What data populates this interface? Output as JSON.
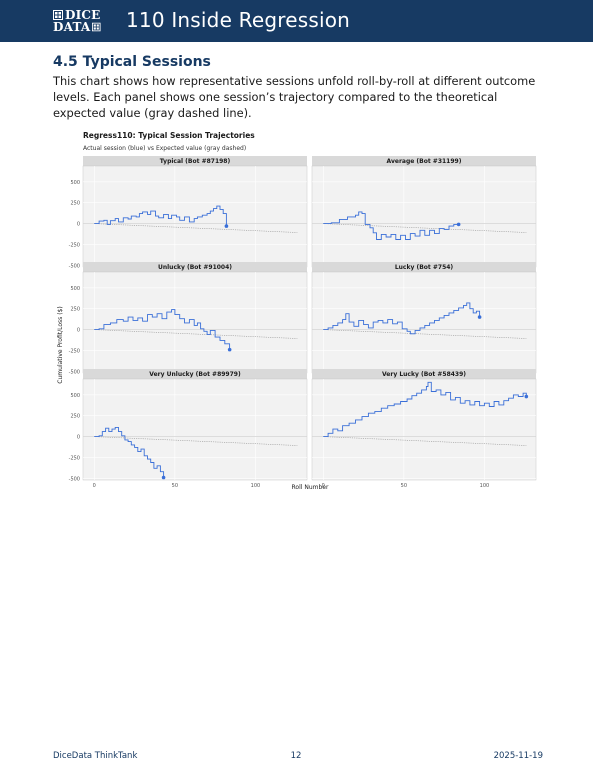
{
  "header": {
    "logo_text": [
      "DICE",
      "DATA"
    ],
    "title": "110 Inside Regression",
    "bg_color": "#173a63"
  },
  "section": {
    "heading": "4.5 Typical Sessions",
    "body": "This chart shows how representative sessions unfold roll-by-roll at different outcome levels. Each panel shows one session’s trajectory compared to the theoretical expected value (gray dashed line)."
  },
  "chart_data": {
    "type": "line",
    "title": "Regress110: Typical Session Trajectories",
    "subtitle": "Actual session (blue) vs Expected value (gray dashed)",
    "xlabel": "Roll Number",
    "ylabel": "Cumulative Profit/Loss ($)",
    "x_ticks": [
      0,
      50,
      100
    ],
    "y_ticks": [
      -500,
      -250,
      0,
      250,
      500
    ],
    "xlim": [
      -7,
      132
    ],
    "ylim": [
      -520,
      690
    ],
    "grid": true,
    "series_color": "#3a6fd8",
    "expected_color": "#9a9a9a",
    "expected_slope": -0.85,
    "panels": [
      {
        "title": "Typical (Bot #87198)",
        "end": [
          82,
          -30
        ],
        "points": [
          [
            0,
            0
          ],
          [
            3,
            30
          ],
          [
            6,
            40
          ],
          [
            8,
            -10
          ],
          [
            10,
            35
          ],
          [
            13,
            60
          ],
          [
            15,
            20
          ],
          [
            18,
            70
          ],
          [
            21,
            55
          ],
          [
            23,
            90
          ],
          [
            26,
            80
          ],
          [
            28,
            120
          ],
          [
            30,
            140
          ],
          [
            33,
            110
          ],
          [
            35,
            150
          ],
          [
            38,
            90
          ],
          [
            40,
            70
          ],
          [
            43,
            110
          ],
          [
            46,
            60
          ],
          [
            48,
            100
          ],
          [
            51,
            80
          ],
          [
            53,
            40
          ],
          [
            56,
            80
          ],
          [
            59,
            20
          ],
          [
            62,
            60
          ],
          [
            64,
            80
          ],
          [
            67,
            100
          ],
          [
            70,
            120
          ],
          [
            72,
            150
          ],
          [
            74,
            180
          ],
          [
            76,
            210
          ],
          [
            78,
            170
          ],
          [
            80,
            120
          ],
          [
            82,
            -30
          ]
        ]
      },
      {
        "title": "Average (Bot #31199)",
        "end": [
          84,
          -10
        ],
        "points": [
          [
            0,
            0
          ],
          [
            5,
            10
          ],
          [
            10,
            50
          ],
          [
            15,
            80
          ],
          [
            20,
            100
          ],
          [
            22,
            140
          ],
          [
            24,
            120
          ],
          [
            26,
            -10
          ],
          [
            29,
            -50
          ],
          [
            31,
            -110
          ],
          [
            33,
            -190
          ],
          [
            36,
            -130
          ],
          [
            39,
            -160
          ],
          [
            42,
            -130
          ],
          [
            45,
            -190
          ],
          [
            48,
            -140
          ],
          [
            51,
            -190
          ],
          [
            54,
            -120
          ],
          [
            57,
            -150
          ],
          [
            60,
            -80
          ],
          [
            63,
            -140
          ],
          [
            66,
            -80
          ],
          [
            69,
            -120
          ],
          [
            72,
            -60
          ],
          [
            75,
            -70
          ],
          [
            78,
            -30
          ],
          [
            81,
            -10
          ],
          [
            84,
            -10
          ]
        ]
      },
      {
        "title": "Unlucky (Bot #91004)",
        "end": [
          84,
          -240
        ],
        "points": [
          [
            0,
            0
          ],
          [
            3,
            10
          ],
          [
            6,
            60
          ],
          [
            10,
            80
          ],
          [
            14,
            120
          ],
          [
            18,
            100
          ],
          [
            21,
            150
          ],
          [
            24,
            110
          ],
          [
            27,
            140
          ],
          [
            30,
            100
          ],
          [
            33,
            180
          ],
          [
            36,
            150
          ],
          [
            39,
            190
          ],
          [
            42,
            130
          ],
          [
            45,
            210
          ],
          [
            48,
            240
          ],
          [
            50,
            180
          ],
          [
            53,
            130
          ],
          [
            56,
            80
          ],
          [
            59,
            120
          ],
          [
            62,
            50
          ],
          [
            64,
            80
          ],
          [
            66,
            10
          ],
          [
            68,
            -20
          ],
          [
            70,
            -60
          ],
          [
            72,
            -10
          ],
          [
            75,
            -90
          ],
          [
            78,
            -130
          ],
          [
            81,
            -170
          ],
          [
            84,
            -240
          ]
        ]
      },
      {
        "title": "Lucky (Bot #754)",
        "end": [
          97,
          150
        ],
        "points": [
          [
            0,
            0
          ],
          [
            3,
            20
          ],
          [
            6,
            50
          ],
          [
            9,
            80
          ],
          [
            12,
            120
          ],
          [
            14,
            190
          ],
          [
            16,
            90
          ],
          [
            19,
            40
          ],
          [
            22,
            110
          ],
          [
            25,
            60
          ],
          [
            28,
            20
          ],
          [
            31,
            90
          ],
          [
            34,
            110
          ],
          [
            37,
            80
          ],
          [
            40,
            120
          ],
          [
            43,
            70
          ],
          [
            46,
            90
          ],
          [
            49,
            10
          ],
          [
            52,
            -20
          ],
          [
            54,
            -50
          ],
          [
            57,
            -10
          ],
          [
            60,
            20
          ],
          [
            63,
            50
          ],
          [
            66,
            80
          ],
          [
            69,
            110
          ],
          [
            72,
            140
          ],
          [
            75,
            170
          ],
          [
            78,
            200
          ],
          [
            81,
            230
          ],
          [
            84,
            260
          ],
          [
            87,
            290
          ],
          [
            89,
            320
          ],
          [
            91,
            250
          ],
          [
            93,
            200
          ],
          [
            95,
            220
          ],
          [
            97,
            150
          ]
        ]
      },
      {
        "title": "Very Unlucky (Bot #89979)",
        "end": [
          43,
          -490
        ],
        "points": [
          [
            0,
            0
          ],
          [
            3,
            10
          ],
          [
            5,
            60
          ],
          [
            7,
            100
          ],
          [
            9,
            60
          ],
          [
            11,
            90
          ],
          [
            13,
            110
          ],
          [
            15,
            60
          ],
          [
            17,
            10
          ],
          [
            19,
            -40
          ],
          [
            21,
            -60
          ],
          [
            23,
            -100
          ],
          [
            25,
            -130
          ],
          [
            27,
            -180
          ],
          [
            29,
            -150
          ],
          [
            31,
            -230
          ],
          [
            33,
            -270
          ],
          [
            35,
            -310
          ],
          [
            37,
            -380
          ],
          [
            39,
            -350
          ],
          [
            41,
            -420
          ],
          [
            43,
            -490
          ]
        ]
      },
      {
        "title": "Very Lucky (Bot #58439)",
        "end": [
          126,
          480
        ],
        "points": [
          [
            0,
            0
          ],
          [
            3,
            40
          ],
          [
            6,
            90
          ],
          [
            9,
            70
          ],
          [
            12,
            130
          ],
          [
            16,
            160
          ],
          [
            20,
            200
          ],
          [
            24,
            240
          ],
          [
            28,
            280
          ],
          [
            32,
            300
          ],
          [
            36,
            340
          ],
          [
            40,
            370
          ],
          [
            44,
            390
          ],
          [
            48,
            420
          ],
          [
            52,
            450
          ],
          [
            55,
            490
          ],
          [
            58,
            520
          ],
          [
            61,
            560
          ],
          [
            64,
            600
          ],
          [
            65,
            650
          ],
          [
            67,
            540
          ],
          [
            70,
            560
          ],
          [
            73,
            500
          ],
          [
            76,
            530
          ],
          [
            79,
            440
          ],
          [
            82,
            470
          ],
          [
            85,
            400
          ],
          [
            88,
            430
          ],
          [
            91,
            380
          ],
          [
            94,
            420
          ],
          [
            97,
            370
          ],
          [
            100,
            400
          ],
          [
            103,
            360
          ],
          [
            106,
            420
          ],
          [
            109,
            380
          ],
          [
            112,
            430
          ],
          [
            115,
            460
          ],
          [
            118,
            500
          ],
          [
            121,
            480
          ],
          [
            124,
            520
          ],
          [
            126,
            480
          ]
        ]
      }
    ]
  },
  "footer": {
    "left": "DiceData ThinkTank",
    "page": "12",
    "date": "2025-11-19"
  }
}
